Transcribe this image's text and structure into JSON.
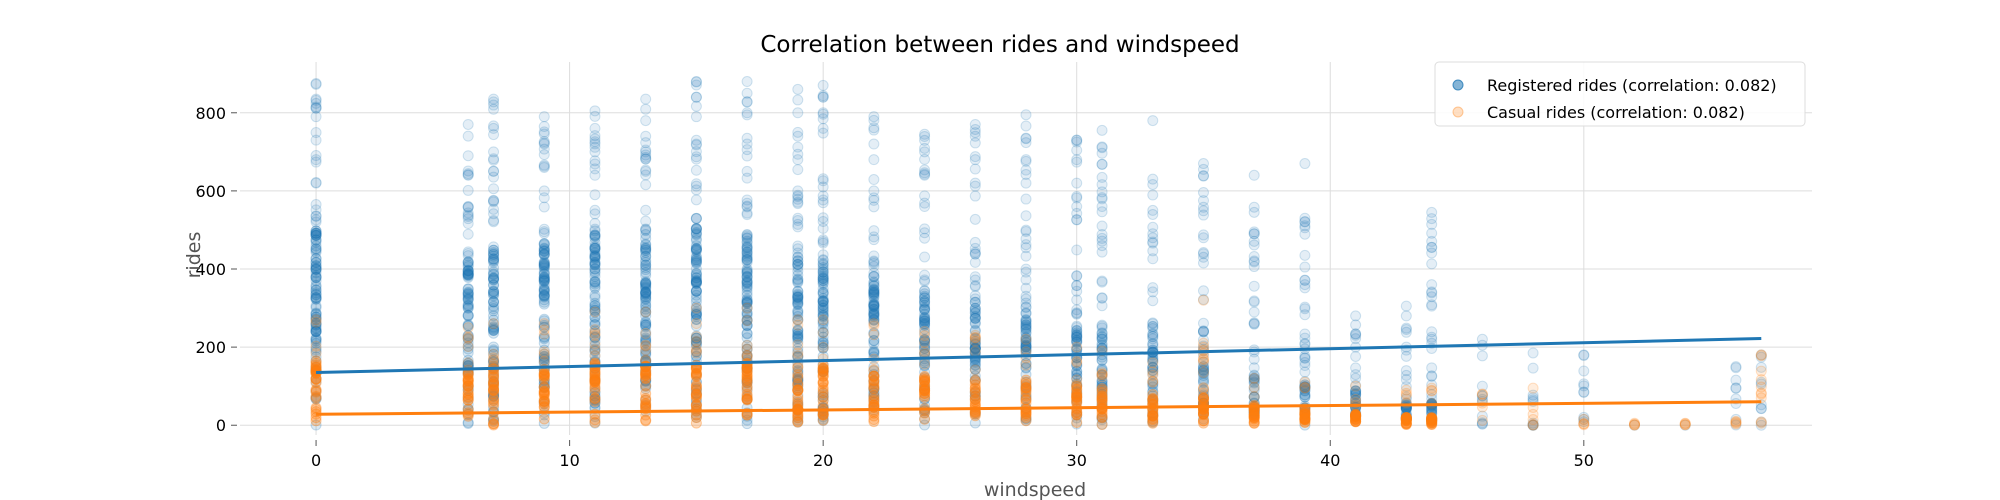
{
  "chart_data": {
    "type": "scatter",
    "title": "Correlation between rides and windspeed",
    "xlabel": "windspeed",
    "ylabel": "rides",
    "xlim": [
      -3,
      59
    ],
    "ylim": [
      -25,
      930
    ],
    "xticks": [
      0,
      10,
      20,
      30,
      40,
      50
    ],
    "yticks": [
      0,
      200,
      400,
      600,
      800
    ],
    "grid": true,
    "legend_position": "top-right",
    "series": [
      {
        "name": "Registered rides (correlation:  0.082)",
        "color": "#1f77b4",
        "trend": {
          "x": [
            0,
            57
          ],
          "y": [
            135,
            222
          ]
        },
        "columns": [
          {
            "x": 0,
            "max": 875,
            "dense": 520,
            "outliers": [
              790,
              835,
              730,
              680,
              620
            ]
          },
          {
            "x": 6,
            "max": 770,
            "dense": 420,
            "outliers": [
              690,
              640,
              560
            ]
          },
          {
            "x": 7,
            "max": 835,
            "dense": 450,
            "outliers": [
              760,
              700,
              650
            ]
          },
          {
            "x": 9,
            "max": 790,
            "dense": 480,
            "outliers": [
              720,
              660,
              600
            ]
          },
          {
            "x": 11,
            "max": 805,
            "dense": 500,
            "outliers": [
              760,
              700,
              640
            ]
          },
          {
            "x": 13,
            "max": 835,
            "dense": 500,
            "outliers": [
              780,
              700,
              650
            ]
          },
          {
            "x": 15,
            "max": 880,
            "dense": 510,
            "outliers": [
              840,
              790,
              720
            ]
          },
          {
            "x": 17,
            "max": 880,
            "dense": 480,
            "outliers": [
              800,
              720,
              650
            ]
          },
          {
            "x": 19,
            "max": 860,
            "dense": 430,
            "outliers": [
              800,
              740,
              680
            ]
          },
          {
            "x": 20,
            "max": 870,
            "dense": 420,
            "outliers": [
              840,
              800,
              760
            ]
          },
          {
            "x": 22,
            "max": 790,
            "dense": 380,
            "outliers": [
              720,
              680,
              600
            ]
          },
          {
            "x": 24,
            "max": 745,
            "dense": 340,
            "outliers": [
              700,
              640,
              560
            ]
          },
          {
            "x": 26,
            "max": 770,
            "dense": 320,
            "outliers": [
              740,
              680,
              620
            ]
          },
          {
            "x": 28,
            "max": 795,
            "dense": 290,
            "outliers": [
              735,
              680,
              620
            ]
          },
          {
            "x": 30,
            "max": 730,
            "dense": 250,
            "outliers": [
              680,
              620,
              560
            ]
          },
          {
            "x": 31,
            "max": 755,
            "dense": 240,
            "outliers": [
              560,
              510,
              460
            ]
          },
          {
            "x": 33,
            "max": 780,
            "dense": 190,
            "outliers": [
              630,
              550,
              480
            ]
          },
          {
            "x": 35,
            "max": 670,
            "dense": 170,
            "outliers": [
              655,
              480,
              430
            ]
          },
          {
            "x": 37,
            "max": 640,
            "dense": 120,
            "outliers": [
              545,
              260
            ]
          },
          {
            "x": 39,
            "max": 670,
            "dense": 100,
            "outliers": [
              530,
              405,
              360
            ]
          },
          {
            "x": 41,
            "max": 280,
            "dense": 90,
            "outliers": [
              230,
              200
            ]
          },
          {
            "x": 43,
            "max": 305,
            "dense": 60,
            "outliers": [
              245,
              200
            ]
          },
          {
            "x": 44,
            "max": 545,
            "dense": 60,
            "outliers": [
              360,
              220,
              125
            ]
          },
          {
            "x": 46,
            "max": 220,
            "dense": 0,
            "outliers": [
              75
            ]
          },
          {
            "x": 48,
            "max": 185,
            "dense": 0,
            "outliers": [
              0
            ]
          },
          {
            "x": 50,
            "max": 180,
            "dense": 0,
            "outliers": [
              85
            ]
          },
          {
            "x": 52,
            "max": 0,
            "dense": 0,
            "outliers": []
          },
          {
            "x": 54,
            "max": 0,
            "dense": 0,
            "outliers": []
          },
          {
            "x": 56,
            "max": 150,
            "dense": 0,
            "outliers": [
              15
            ]
          },
          {
            "x": 57,
            "max": 180,
            "dense": 0,
            "outliers": [
              110
            ]
          }
        ]
      },
      {
        "name": "Casual rides (correlation:  0.082)",
        "color": "#ff7f0e",
        "trend": {
          "x": [
            0,
            57
          ],
          "y": [
            28,
            60
          ]
        },
        "columns": [
          {
            "x": 0,
            "max": 270,
            "dense": 160,
            "outliers": []
          },
          {
            "x": 6,
            "max": 250,
            "dense": 140,
            "outliers": []
          },
          {
            "x": 7,
            "max": 260,
            "dense": 150,
            "outliers": []
          },
          {
            "x": 9,
            "max": 260,
            "dense": 150,
            "outliers": []
          },
          {
            "x": 11,
            "max": 290,
            "dense": 160,
            "outliers": []
          },
          {
            "x": 13,
            "max": 290,
            "dense": 160,
            "outliers": []
          },
          {
            "x": 15,
            "max": 300,
            "dense": 160,
            "outliers": []
          },
          {
            "x": 17,
            "max": 300,
            "dense": 160,
            "outliers": []
          },
          {
            "x": 19,
            "max": 270,
            "dense": 150,
            "outliers": []
          },
          {
            "x": 20,
            "max": 270,
            "dense": 150,
            "outliers": []
          },
          {
            "x": 22,
            "max": 260,
            "dense": 140,
            "outliers": []
          },
          {
            "x": 24,
            "max": 240,
            "dense": 130,
            "outliers": []
          },
          {
            "x": 26,
            "max": 230,
            "dense": 120,
            "outliers": []
          },
          {
            "x": 28,
            "max": 220,
            "dense": 110,
            "outliers": []
          },
          {
            "x": 30,
            "max": 200,
            "dense": 100,
            "outliers": []
          },
          {
            "x": 31,
            "max": 190,
            "dense": 100,
            "outliers": []
          },
          {
            "x": 33,
            "max": 160,
            "dense": 80,
            "outliers": []
          },
          {
            "x": 35,
            "max": 320,
            "dense": 70,
            "outliers": [
              210
            ]
          },
          {
            "x": 37,
            "max": 120,
            "dense": 50,
            "outliers": []
          },
          {
            "x": 39,
            "max": 110,
            "dense": 40,
            "outliers": []
          },
          {
            "x": 41,
            "max": 100,
            "dense": 30,
            "outliers": []
          },
          {
            "x": 43,
            "max": 90,
            "dense": 20,
            "outliers": []
          },
          {
            "x": 44,
            "max": 95,
            "dense": 20,
            "outliers": []
          },
          {
            "x": 46,
            "max": 80,
            "dense": 0,
            "outliers": []
          },
          {
            "x": 48,
            "max": 95,
            "dense": 0,
            "outliers": [
              0
            ]
          },
          {
            "x": 50,
            "max": 15,
            "dense": 0,
            "outliers": []
          },
          {
            "x": 52,
            "max": 5,
            "dense": 0,
            "outliers": []
          },
          {
            "x": 54,
            "max": 5,
            "dense": 0,
            "outliers": []
          },
          {
            "x": 56,
            "max": 10,
            "dense": 0,
            "outliers": []
          },
          {
            "x": 57,
            "max": 180,
            "dense": 0,
            "outliers": [
              70
            ]
          }
        ]
      }
    ]
  }
}
